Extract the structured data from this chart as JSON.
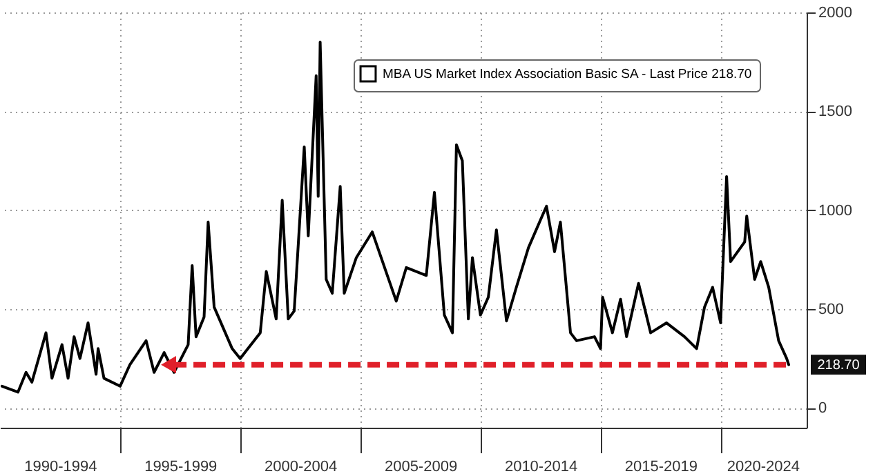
{
  "chart_data": {
    "type": "line",
    "xlim": [
      "1990-01",
      "2023-08"
    ],
    "ylim": [
      -100,
      2000
    ],
    "xticks": [
      {
        "value": "1992-07",
        "label": "1990-1994"
      },
      {
        "value": "1995-01",
        "label": null
      },
      {
        "value": "1997-07",
        "label": "1995-1999"
      },
      {
        "value": "2000-01",
        "label": null
      },
      {
        "value": "2002-07",
        "label": "2000-2004"
      },
      {
        "value": "2005-01",
        "label": null
      },
      {
        "value": "2007-07",
        "label": "2005-2009"
      },
      {
        "value": "2010-01",
        "label": null
      },
      {
        "value": "2012-07",
        "label": "2010-2014"
      },
      {
        "value": "2015-01",
        "label": null
      },
      {
        "value": "2017-07",
        "label": "2015-2019"
      },
      {
        "value": "2020-01",
        "label": null
      },
      {
        "value": "2021-10",
        "label": "2020-2024"
      }
    ],
    "yticks": [
      0,
      500,
      1000,
      1500,
      2000
    ],
    "grid": true,
    "legend": "top right",
    "tick_labels": "xy",
    "annotations": [
      {
        "text": "218.70",
        "x": "2022-11",
        "y": 218.7
      }
    ],
    "series": [
      {
        "name": "MBA US Market Index Association Basic SA - Last Price 218.70",
        "color": "#000000",
        "x": [
          "1990-02",
          "1990-10",
          "1991-02",
          "1991-05",
          "1991-12",
          "1992-03",
          "1992-08",
          "1992-11",
          "1993-02",
          "1993-05",
          "1993-09",
          "1994-01",
          "1994-02",
          "1994-05",
          "1995-01",
          "1995-06",
          "1996-02",
          "1996-06",
          "1996-11",
          "1997-04",
          "1997-11",
          "1998-01",
          "1998-03",
          "1998-07",
          "1998-09",
          "1998-12",
          "1999-09",
          "2000-01",
          "2000-11",
          "2001-02",
          "2001-07",
          "2001-10",
          "2002-01",
          "2002-04",
          "2002-09",
          "2002-11",
          "2003-03",
          "2003-04",
          "2003-05",
          "2003-08",
          "2003-11",
          "2004-03",
          "2004-05",
          "2004-11",
          "2005-07",
          "2006-07",
          "2006-12",
          "2007-10",
          "2008-02",
          "2008-07",
          "2008-11",
          "2009-01",
          "2009-04",
          "2009-07",
          "2009-09",
          "2010-01",
          "2010-05",
          "2010-09",
          "2011-02",
          "2011-07",
          "2012-01",
          "2012-07",
          "2012-10",
          "2013-02",
          "2013-05",
          "2013-10",
          "2014-01",
          "2014-10",
          "2015-01",
          "2015-02",
          "2015-07",
          "2015-11",
          "2016-02",
          "2016-08",
          "2017-02",
          "2017-10",
          "2018-07",
          "2019-01",
          "2019-05",
          "2019-09",
          "2020-01",
          "2020-02",
          "2020-04",
          "2020-06",
          "2021-01",
          "2021-02",
          "2021-06",
          "2021-09",
          "2022-01",
          "2022-06",
          "2022-10",
          "2022-11"
        ],
        "values": [
          110,
          80,
          180,
          130,
          380,
          150,
          320,
          150,
          360,
          250,
          430,
          170,
          300,
          150,
          110,
          220,
          340,
          180,
          280,
          180,
          320,
          720,
          360,
          460,
          940,
          510,
          300,
          250,
          380,
          690,
          450,
          1050,
          450,
          490,
          1320,
          870,
          1680,
          1070,
          1850,
          650,
          580,
          1120,
          580,
          760,
          890,
          540,
          710,
          670,
          1090,
          470,
          380,
          1330,
          1250,
          450,
          760,
          470,
          560,
          900,
          440,
          610,
          810,
          950,
          1020,
          790,
          940,
          380,
          340,
          360,
          300,
          560,
          380,
          550,
          360,
          630,
          380,
          430,
          360,
          300,
          510,
          610,
          430,
          690,
          1170,
          740,
          840,
          970,
          650,
          740,
          610,
          340,
          250,
          218.7
        ]
      }
    ]
  }
}
